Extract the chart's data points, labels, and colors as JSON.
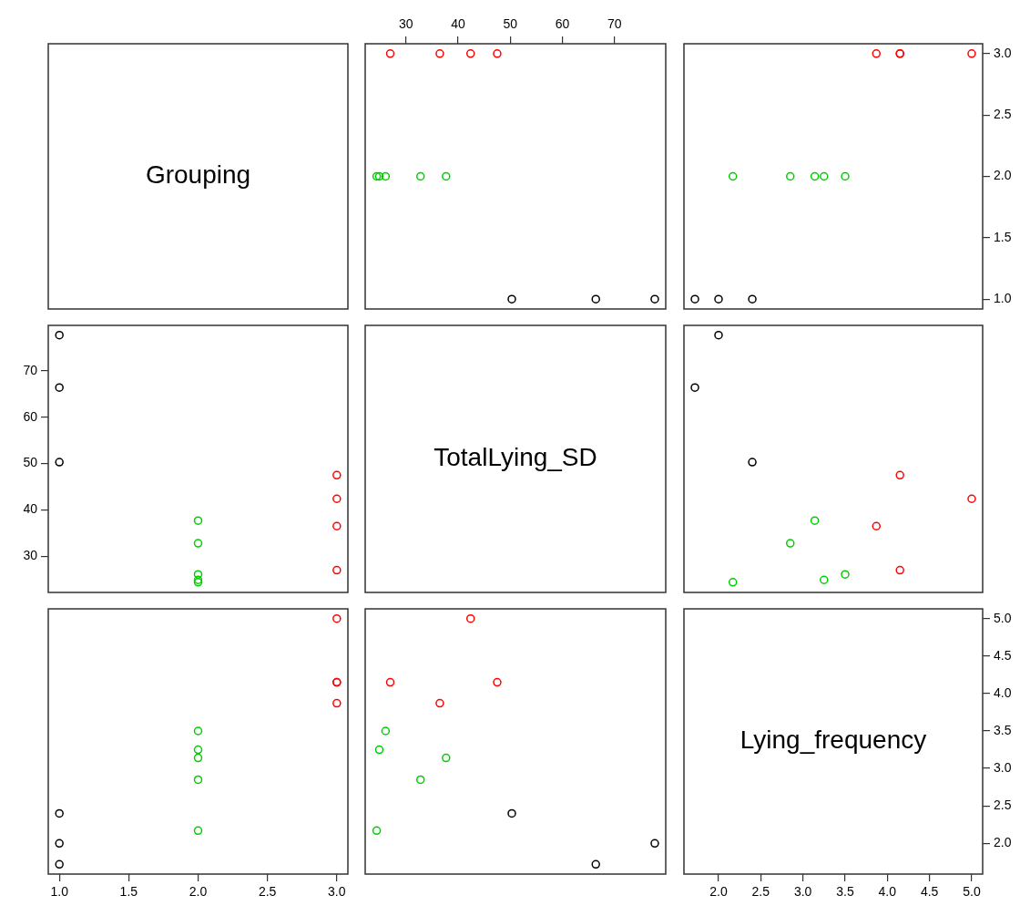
{
  "chart_data": [
    {
      "type": "other",
      "title": "Grouping"
    },
    {
      "type": "scatter",
      "marker": "circle",
      "xlim": [
        22.2,
        79.8
      ],
      "xticks": [
        30,
        40,
        50,
        60,
        70
      ],
      "ylim": [
        0.92,
        3.08
      ],
      "tick_labels": "x",
      "series": [
        {
          "color": "#000000",
          "x": [
            50.3,
            66.4,
            77.7
          ],
          "values": [
            1,
            1,
            1
          ]
        },
        {
          "color": "#00cd00",
          "x": [
            24.4,
            24.9,
            26.1,
            32.8,
            37.7
          ],
          "values": [
            2,
            2,
            2,
            2,
            2
          ]
        },
        {
          "color": "#ff0000",
          "x": [
            27.0,
            36.5,
            42.4,
            47.5
          ],
          "values": [
            3,
            3,
            3,
            3
          ]
        }
      ]
    },
    {
      "type": "scatter",
      "marker": "circle",
      "xlim": [
        1.59,
        5.13
      ],
      "ylim": [
        0.92,
        3.08
      ],
      "yticks": [
        {
          "value": 1,
          "label": "1.0"
        },
        {
          "value": 1.5,
          "label": "1.5"
        },
        {
          "value": 2,
          "label": "2.0"
        },
        {
          "value": 2.5,
          "label": "2.5"
        },
        {
          "value": 3,
          "label": "3.0"
        }
      ],
      "tick_labels": "y",
      "series": [
        {
          "color": "#000000",
          "x": [
            2.4,
            1.72,
            2.0
          ],
          "values": [
            1,
            1,
            1
          ]
        },
        {
          "color": "#00cd00",
          "x": [
            2.17,
            3.25,
            3.5,
            2.85,
            3.14
          ],
          "values": [
            2,
            2,
            2,
            2,
            2
          ]
        },
        {
          "color": "#ff0000",
          "x": [
            4.15,
            3.87,
            5.0,
            4.15
          ],
          "values": [
            3,
            3,
            3,
            3
          ]
        }
      ]
    },
    {
      "type": "scatter",
      "marker": "circle",
      "xlim": [
        0.92,
        3.08
      ],
      "ylim": [
        22.2,
        79.8
      ],
      "yticks": [
        30,
        40,
        50,
        60,
        70
      ],
      "tick_labels": "y",
      "series": [
        {
          "color": "#000000",
          "x": [
            1,
            1,
            1
          ],
          "values": [
            50.3,
            66.4,
            77.7
          ]
        },
        {
          "color": "#00cd00",
          "x": [
            2,
            2,
            2,
            2,
            2
          ],
          "values": [
            24.4,
            24.9,
            26.1,
            32.8,
            37.7
          ]
        },
        {
          "color": "#ff0000",
          "x": [
            3,
            3,
            3,
            3
          ],
          "values": [
            27.0,
            36.5,
            42.4,
            47.5
          ]
        }
      ]
    },
    {
      "type": "other",
      "title": "TotalLying_SD"
    },
    {
      "type": "scatter",
      "marker": "circle",
      "xlim": [
        1.59,
        5.13
      ],
      "ylim": [
        22.2,
        79.8
      ],
      "tick_labels": false,
      "series": [
        {
          "color": "#000000",
          "x": [
            2.4,
            1.72,
            2.0
          ],
          "values": [
            50.3,
            66.4,
            77.7
          ]
        },
        {
          "color": "#00cd00",
          "x": [
            2.17,
            3.25,
            3.5,
            2.85,
            3.14
          ],
          "values": [
            24.4,
            24.9,
            26.1,
            32.8,
            37.7
          ]
        },
        {
          "color": "#ff0000",
          "x": [
            4.15,
            3.87,
            5.0,
            4.15
          ],
          "values": [
            27.0,
            36.5,
            42.4,
            47.5
          ]
        }
      ]
    },
    {
      "type": "scatter",
      "marker": "circle",
      "xlim": [
        0.92,
        3.08
      ],
      "xticks": [
        {
          "value": 1,
          "label": "1.0"
        },
        {
          "value": 1.5,
          "label": "1.5"
        },
        {
          "value": 2,
          "label": "2.0"
        },
        {
          "value": 2.5,
          "label": "2.5"
        },
        {
          "value": 3,
          "label": "3.0"
        }
      ],
      "ylim": [
        1.59,
        5.13
      ],
      "tick_labels": "x",
      "series": [
        {
          "color": "#000000",
          "x": [
            1,
            1,
            1
          ],
          "values": [
            2.4,
            1.72,
            2.0
          ]
        },
        {
          "color": "#00cd00",
          "x": [
            2,
            2,
            2,
            2,
            2
          ],
          "values": [
            2.17,
            3.25,
            3.5,
            2.85,
            3.14
          ]
        },
        {
          "color": "#ff0000",
          "x": [
            3,
            3,
            3,
            3
          ],
          "values": [
            4.15,
            3.87,
            5.0,
            4.15
          ]
        }
      ]
    },
    {
      "type": "scatter",
      "marker": "circle",
      "xlim": [
        22.2,
        79.8
      ],
      "ylim": [
        1.59,
        5.13
      ],
      "tick_labels": false,
      "series": [
        {
          "color": "#000000",
          "x": [
            50.3,
            66.4,
            77.7
          ],
          "values": [
            2.4,
            1.72,
            2.0
          ]
        },
        {
          "color": "#00cd00",
          "x": [
            24.4,
            24.9,
            26.1,
            32.8,
            37.7
          ],
          "values": [
            2.17,
            3.25,
            3.5,
            2.85,
            3.14
          ]
        },
        {
          "color": "#ff0000",
          "x": [
            27.0,
            36.5,
            42.4,
            47.5
          ],
          "values": [
            4.15,
            3.87,
            5.0,
            4.15
          ]
        }
      ]
    },
    {
      "type": "scatter",
      "title": "Lying_frequency",
      "xlim": [
        1.59,
        5.13
      ],
      "xticks": [
        {
          "value": 2,
          "label": "2.0"
        },
        {
          "value": 2.5,
          "label": "2.5"
        },
        {
          "value": 3,
          "label": "3.0"
        },
        {
          "value": 3.5,
          "label": "3.5"
        },
        {
          "value": 4,
          "label": "4.0"
        },
        {
          "value": 4.5,
          "label": "4.5"
        },
        {
          "value": 5,
          "label": "5.0"
        }
      ],
      "ylim": [
        1.59,
        5.13
      ],
      "yticks": [
        {
          "value": 2,
          "label": "2.0"
        },
        {
          "value": 2.5,
          "label": "2.5"
        },
        {
          "value": 3,
          "label": "3.0"
        },
        {
          "value": 3.5,
          "label": "3.5"
        },
        {
          "value": 4,
          "label": "4.0"
        },
        {
          "value": 4.5,
          "label": "4.5"
        },
        {
          "value": 5,
          "label": "5.0"
        }
      ]
    }
  ]
}
